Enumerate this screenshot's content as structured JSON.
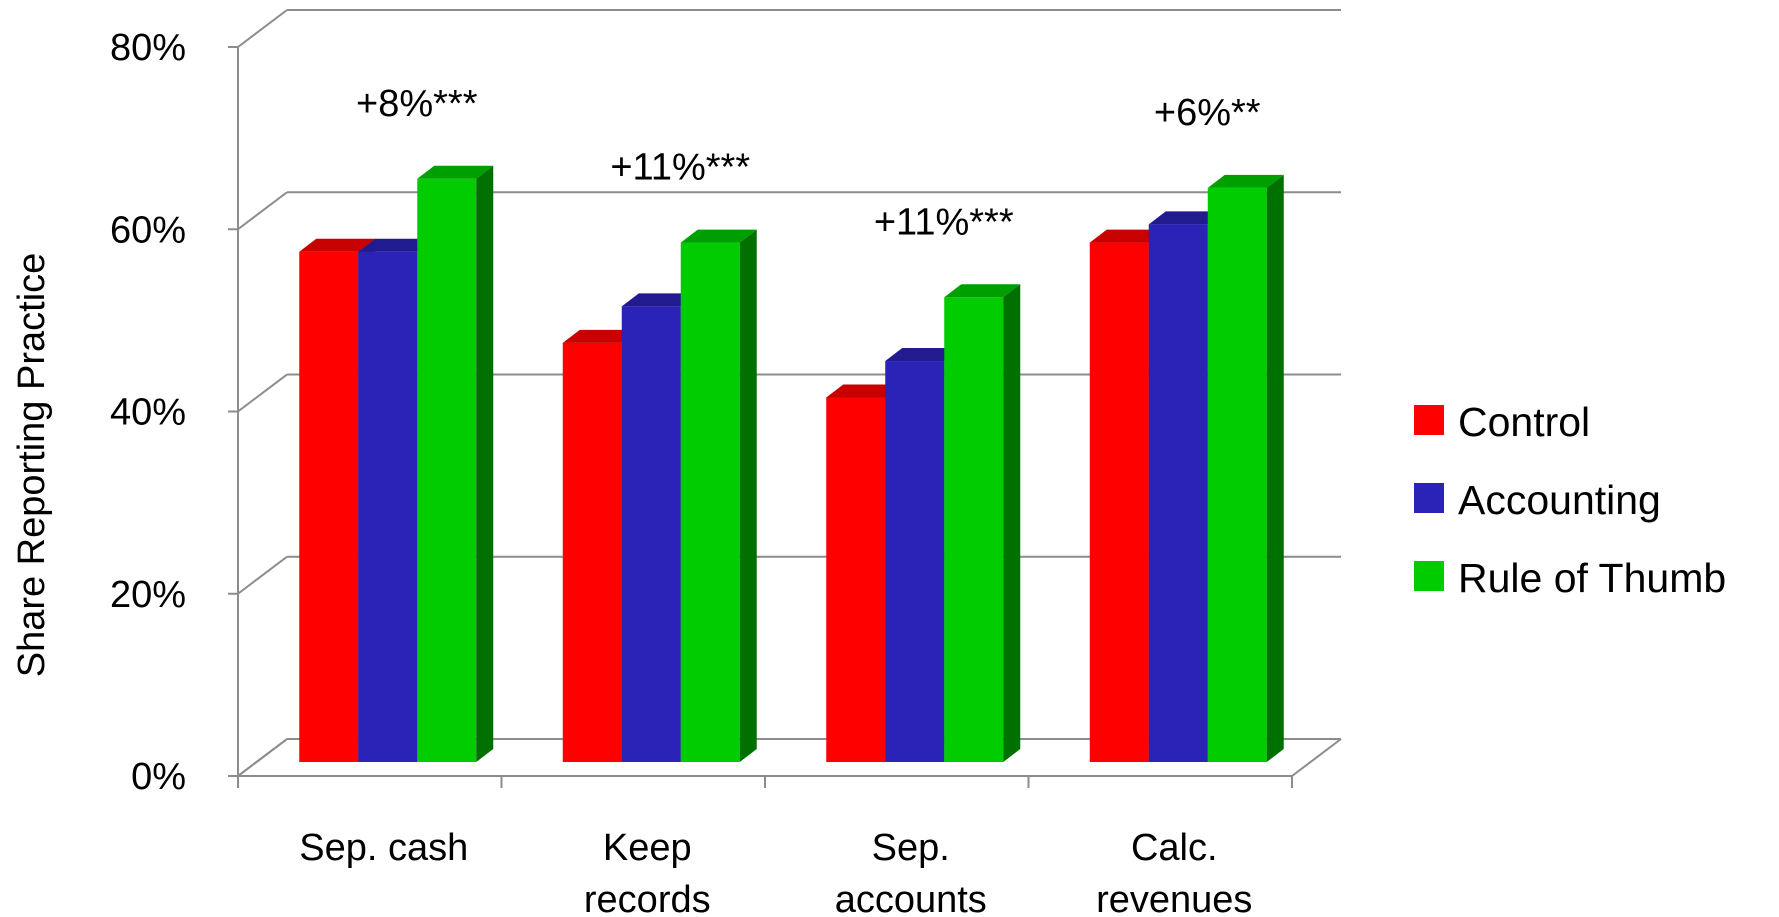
{
  "chart_data": {
    "type": "bar",
    "title": "",
    "xlabel": "",
    "ylabel": "Share Reporting Practice",
    "ylim": [
      0,
      80
    ],
    "yticks": [
      "0%",
      "20%",
      "40%",
      "60%",
      "80%"
    ],
    "categories": [
      [
        "Sep. cash"
      ],
      [
        "Keep",
        "records"
      ],
      [
        "Sep.",
        "accounts"
      ],
      [
        "Calc.",
        "revenues"
      ]
    ],
    "series": [
      {
        "name": "Control",
        "color": "#ff0000",
        "values": [
          56,
          46,
          40,
          57
        ]
      },
      {
        "name": "Accounting",
        "color": "#2b22b8",
        "values": [
          56,
          50,
          44,
          59
        ]
      },
      {
        "name": "Rule of Thumb",
        "color": "#00cc00",
        "values": [
          64,
          57,
          51,
          63
        ]
      }
    ],
    "annotations": [
      "+8%***",
      "+11%***",
      "+11%***",
      "+6%**"
    ],
    "grid": true,
    "legend_position": "right"
  }
}
